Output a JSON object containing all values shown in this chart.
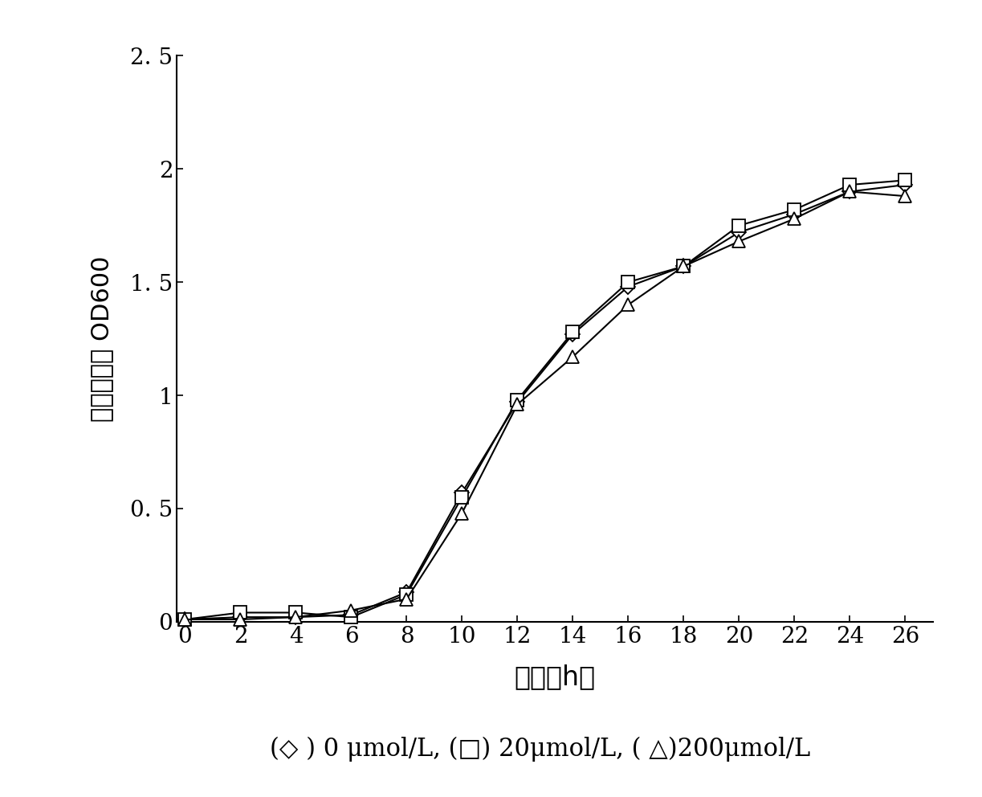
{
  "x": [
    0,
    2,
    4,
    6,
    8,
    10,
    12,
    14,
    16,
    18,
    20,
    22,
    24,
    26
  ],
  "diamond": [
    0.01,
    0.02,
    0.02,
    0.03,
    0.13,
    0.57,
    0.97,
    1.27,
    1.48,
    1.57,
    1.72,
    1.8,
    1.9,
    1.93
  ],
  "square": [
    0.01,
    0.04,
    0.04,
    0.02,
    0.12,
    0.55,
    0.98,
    1.28,
    1.5,
    1.57,
    1.75,
    1.82,
    1.93,
    1.95
  ],
  "triangle": [
    0.01,
    0.01,
    0.02,
    0.05,
    0.1,
    0.48,
    0.96,
    1.17,
    1.4,
    1.57,
    1.68,
    1.78,
    1.9,
    1.88
  ],
  "xlabel": "时间（h）",
  "ylabel": "细菌生长量 OD600",
  "legend_text": "(◇ ) 0 μmol/L, (□) 20μmol/L, ( △)200μmol/L",
  "ylim": [
    0,
    2.5
  ],
  "xlim": [
    -0.3,
    27
  ],
  "ytick_vals": [
    0,
    0.5,
    1.0,
    1.5,
    2.0,
    2.5
  ],
  "ytick_labels": [
    "0",
    "0. 5",
    "1",
    "1. 5",
    "2",
    "2. 5"
  ],
  "xticks": [
    0,
    2,
    4,
    6,
    8,
    10,
    12,
    14,
    16,
    18,
    20,
    22,
    24,
    26
  ],
  "line_color": "#000000",
  "background_color": "#ffffff",
  "marker_size": 9,
  "line_width": 1.5
}
